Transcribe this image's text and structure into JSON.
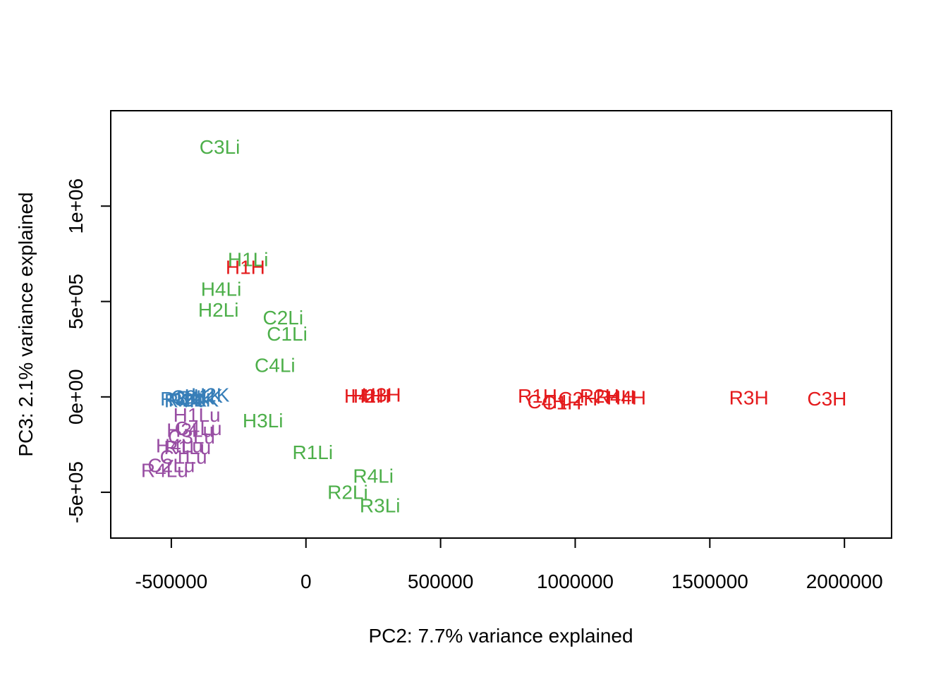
{
  "chart_data": {
    "type": "scatter",
    "xlabel": "PC2: 7.7% variance explained",
    "ylabel": "PC3: 2.1% variance explained",
    "xlim": [
      -725000,
      2175000
    ],
    "ylim": [
      -740000,
      1500000
    ],
    "x_ticks": [
      -500000,
      0,
      500000,
      1000000,
      1500000,
      2000000
    ],
    "x_tick_labels": [
      "-500000",
      "0",
      "500000",
      "1000000",
      "1500000",
      "2000000"
    ],
    "y_ticks": [
      -500000,
      0,
      500000,
      1000000
    ],
    "y_tick_labels": [
      "-5e+05",
      "0e+00",
      "5e+05",
      "1e+06"
    ],
    "grid": false,
    "colors": {
      "heart": "#E41A1C",
      "liver": "#4DAF4A",
      "kidney": "#377EB8",
      "lung": "#984EA3"
    },
    "points": [
      {
        "label": "C3Li",
        "x": -320000,
        "y": 1310000,
        "group": "liver"
      },
      {
        "label": "H1Li",
        "x": -215000,
        "y": 720000,
        "group": "liver"
      },
      {
        "label": "H4Li",
        "x": -315000,
        "y": 565000,
        "group": "liver"
      },
      {
        "label": "H2Li",
        "x": -325000,
        "y": 455000,
        "group": "liver"
      },
      {
        "label": "C2Li",
        "x": -85000,
        "y": 415000,
        "group": "liver"
      },
      {
        "label": "C1Li",
        "x": -70000,
        "y": 330000,
        "group": "liver"
      },
      {
        "label": "C4Li",
        "x": -115000,
        "y": 165000,
        "group": "liver"
      },
      {
        "label": "H3Li",
        "x": -160000,
        "y": -125000,
        "group": "liver"
      },
      {
        "label": "R1Li",
        "x": 25000,
        "y": -290000,
        "group": "liver"
      },
      {
        "label": "R4Li",
        "x": 250000,
        "y": -415000,
        "group": "liver"
      },
      {
        "label": "R2Li",
        "x": 155000,
        "y": -500000,
        "group": "liver"
      },
      {
        "label": "R3Li",
        "x": 275000,
        "y": -570000,
        "group": "liver"
      },
      {
        "label": "H1H",
        "x": -225000,
        "y": 680000,
        "group": "heart"
      },
      {
        "label": "H2H",
        "x": 240000,
        "y": 5000,
        "group": "heart"
      },
      {
        "label": "H3H",
        "x": 280000,
        "y": 10000,
        "group": "heart"
      },
      {
        "label": "H4H",
        "x": 215000,
        "y": 5000,
        "group": "heart"
      },
      {
        "label": "R1H",
        "x": 860000,
        "y": 5000,
        "group": "heart"
      },
      {
        "label": "C4H",
        "x": 895000,
        "y": -25000,
        "group": "heart"
      },
      {
        "label": "C1H",
        "x": 950000,
        "y": -30000,
        "group": "heart"
      },
      {
        "label": "C2H",
        "x": 1010000,
        "y": -10000,
        "group": "heart"
      },
      {
        "label": "R2H",
        "x": 1090000,
        "y": 5000,
        "group": "heart"
      },
      {
        "label": "R4H",
        "x": 1150000,
        "y": 0,
        "group": "heart"
      },
      {
        "label": "H4H",
        "x": 1190000,
        "y": -5000,
        "group": "heart"
      },
      {
        "label": "R3H",
        "x": 1645000,
        "y": -5000,
        "group": "heart"
      },
      {
        "label": "C3H",
        "x": 1935000,
        "y": -10000,
        "group": "heart"
      },
      {
        "label": "H2K",
        "x": -355000,
        "y": 10000,
        "group": "kidney"
      },
      {
        "label": "H1K",
        "x": -380000,
        "y": 5000,
        "group": "kidney"
      },
      {
        "label": "R1K",
        "x": -410000,
        "y": -5000,
        "group": "kidney"
      },
      {
        "label": "R2K",
        "x": -440000,
        "y": -15000,
        "group": "kidney"
      },
      {
        "label": "R3K",
        "x": -470000,
        "y": -10000,
        "group": "kidney"
      },
      {
        "label": "C1K",
        "x": -395000,
        "y": -15000,
        "group": "kidney"
      },
      {
        "label": "C2K",
        "x": -430000,
        "y": 0,
        "group": "kidney"
      },
      {
        "label": "R4K",
        "x": -455000,
        "y": -20000,
        "group": "kidney"
      },
      {
        "label": "H1Lu",
        "x": -405000,
        "y": -95000,
        "group": "lung"
      },
      {
        "label": "C4Lu",
        "x": -400000,
        "y": -165000,
        "group": "lung"
      },
      {
        "label": "H3Lu",
        "x": -430000,
        "y": -175000,
        "group": "lung"
      },
      {
        "label": "C3Lu",
        "x": -425000,
        "y": -210000,
        "group": "lung"
      },
      {
        "label": "H4Lu",
        "x": -470000,
        "y": -255000,
        "group": "lung"
      },
      {
        "label": "R1Lu",
        "x": -440000,
        "y": -265000,
        "group": "lung"
      },
      {
        "label": "C1Lu",
        "x": -455000,
        "y": -315000,
        "group": "lung"
      },
      {
        "label": "C2Lu",
        "x": -500000,
        "y": -360000,
        "group": "lung"
      },
      {
        "label": "R4Lu",
        "x": -525000,
        "y": -385000,
        "group": "lung"
      }
    ]
  }
}
